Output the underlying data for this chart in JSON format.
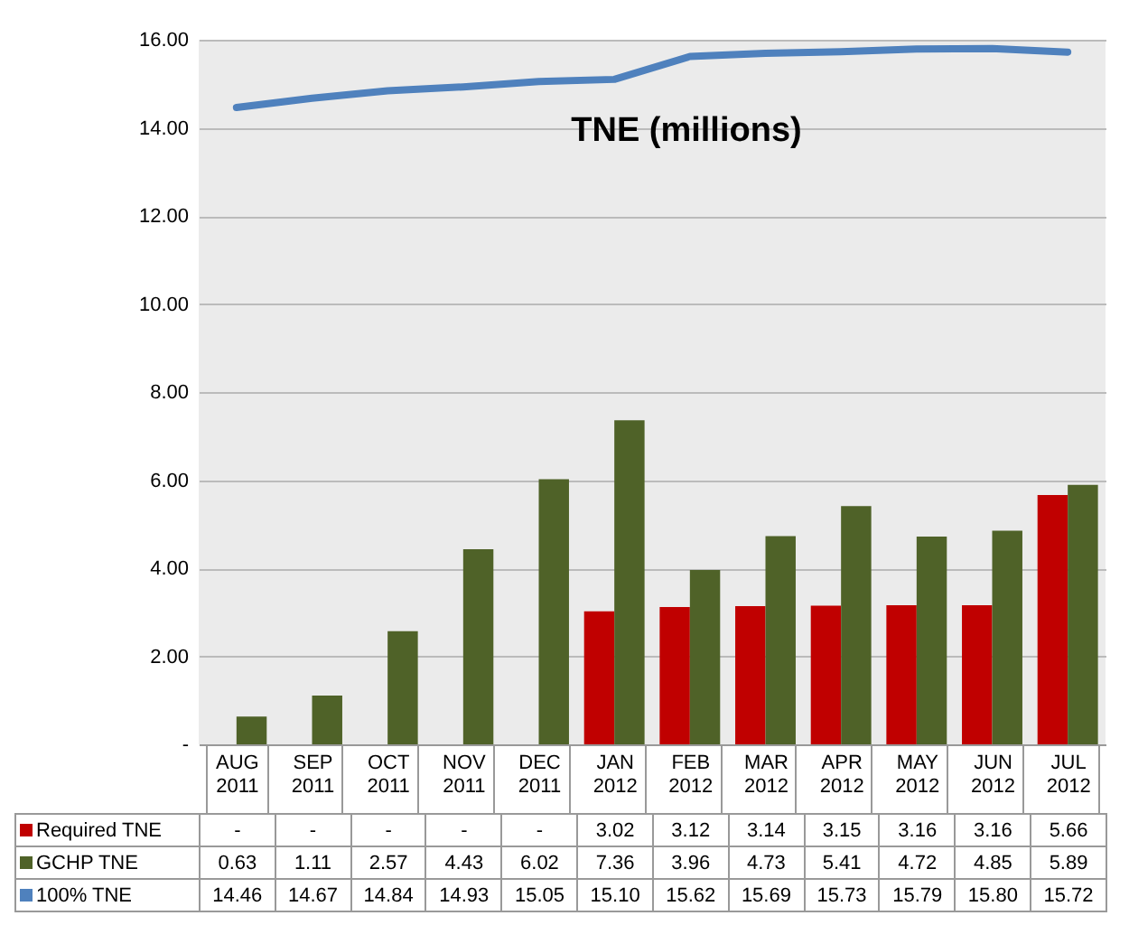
{
  "chart_data": {
    "type": "bar",
    "title": "TNE (millions)",
    "categories": [
      "AUG 2011",
      "SEP 2011",
      "OCT 2011",
      "NOV 2011",
      "DEC 2011",
      "JAN 2012",
      "FEB 2012",
      "MAR 2012",
      "APR 2012",
      "MAY 2012",
      "JUN 2012",
      "JUL 2012"
    ],
    "series": [
      {
        "name": "Required TNE",
        "color": "#c00000",
        "values": [
          null,
          null,
          null,
          null,
          null,
          3.02,
          3.12,
          3.14,
          3.15,
          3.16,
          3.16,
          5.66
        ],
        "value_labels": [
          "-",
          "-",
          "-",
          "-",
          "-",
          "3.02",
          "3.12",
          "3.14",
          "3.15",
          "3.16",
          "3.16",
          "5.66"
        ]
      },
      {
        "name": "GCHP TNE",
        "color": "#4f6228",
        "values": [
          0.63,
          1.11,
          2.57,
          4.43,
          6.02,
          7.36,
          3.96,
          4.73,
          5.41,
          4.72,
          4.85,
          5.89
        ],
        "value_labels": [
          "0.63",
          "1.11",
          "2.57",
          "4.43",
          "6.02",
          "7.36",
          "3.96",
          "4.73",
          "5.41",
          "4.72",
          "4.85",
          "5.89"
        ]
      },
      {
        "name": "100% TNE",
        "type": "line",
        "color": "#4f81bd",
        "values": [
          14.46,
          14.67,
          14.84,
          14.93,
          15.05,
          15.1,
          15.62,
          15.69,
          15.73,
          15.79,
          15.8,
          15.72
        ],
        "value_labels": [
          "14.46",
          "14.67",
          "14.84",
          "14.93",
          "15.05",
          "15.10",
          "15.62",
          "15.69",
          "15.73",
          "15.79",
          "15.80",
          "15.72"
        ]
      }
    ],
    "ylim": [
      0,
      16
    ],
    "yticks": [
      {
        "value": 0,
        "label": "-"
      },
      {
        "value": 2,
        "label": "2.00"
      },
      {
        "value": 4,
        "label": "4.00"
      },
      {
        "value": 6,
        "label": "6.00"
      },
      {
        "value": 8,
        "label": "8.00"
      },
      {
        "value": 10,
        "label": "10.00"
      },
      {
        "value": 12,
        "label": "12.00"
      },
      {
        "value": 14,
        "label": "14.00"
      },
      {
        "value": 16,
        "label": "16.00"
      }
    ],
    "grid": "y",
    "legend": "bottom"
  }
}
